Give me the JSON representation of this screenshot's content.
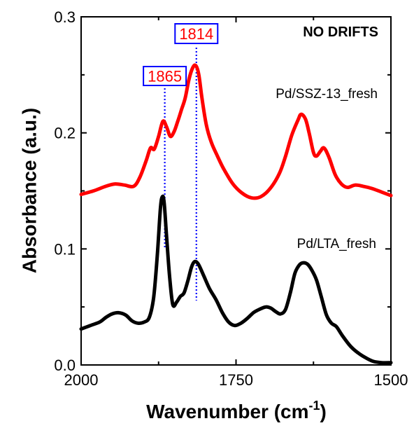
{
  "chart_data": {
    "type": "line",
    "xlabel": "Wavenumber (cm",
    "xlabel_sup": "-1",
    "xlabel_close": ")",
    "ylabel": "Absorbance (a.u.)",
    "xlim": [
      2000,
      1500
    ],
    "ylim": [
      0,
      0.3
    ],
    "x_ticks": [
      2000,
      1750,
      1500
    ],
    "y_ticks": [
      0.0,
      0.1,
      0.2,
      0.3
    ],
    "y_tick_labels": [
      "0.0",
      "0.1",
      "0.2",
      "0.3"
    ],
    "grid": false,
    "annotations": {
      "title": "NO DRIFTS",
      "peaks": [
        {
          "label": "1865",
          "x": 1865,
          "color": "#ff0000",
          "box_color": "#0000ff"
        },
        {
          "label": "1814",
          "x": 1814,
          "color": "#ff0000",
          "box_color": "#0000ff"
        }
      ]
    },
    "series": [
      {
        "name": "Pd/SSZ-13_fresh",
        "color": "#ff0000",
        "points": [
          [
            2000,
            0.147
          ],
          [
            1980,
            0.15
          ],
          [
            1960,
            0.154
          ],
          [
            1945,
            0.156
          ],
          [
            1930,
            0.155
          ],
          [
            1915,
            0.154
          ],
          [
            1905,
            0.162
          ],
          [
            1895,
            0.176
          ],
          [
            1888,
            0.187
          ],
          [
            1882,
            0.186
          ],
          [
            1875,
            0.197
          ],
          [
            1868,
            0.21
          ],
          [
            1862,
            0.205
          ],
          [
            1856,
            0.197
          ],
          [
            1850,
            0.201
          ],
          [
            1844,
            0.21
          ],
          [
            1838,
            0.22
          ],
          [
            1832,
            0.23
          ],
          [
            1826,
            0.246
          ],
          [
            1820,
            0.256
          ],
          [
            1815,
            0.258
          ],
          [
            1810,
            0.25
          ],
          [
            1805,
            0.23
          ],
          [
            1798,
            0.207
          ],
          [
            1790,
            0.192
          ],
          [
            1780,
            0.18
          ],
          [
            1770,
            0.169
          ],
          [
            1755,
            0.156
          ],
          [
            1740,
            0.148
          ],
          [
            1725,
            0.144
          ],
          [
            1710,
            0.145
          ],
          [
            1695,
            0.152
          ],
          [
            1680,
            0.165
          ],
          [
            1670,
            0.18
          ],
          [
            1660,
            0.198
          ],
          [
            1650,
            0.211
          ],
          [
            1645,
            0.216
          ],
          [
            1638,
            0.212
          ],
          [
            1632,
            0.2
          ],
          [
            1625,
            0.183
          ],
          [
            1620,
            0.18
          ],
          [
            1614,
            0.184
          ],
          [
            1608,
            0.187
          ],
          [
            1600,
            0.179
          ],
          [
            1590,
            0.164
          ],
          [
            1580,
            0.156
          ],
          [
            1570,
            0.153
          ],
          [
            1558,
            0.155
          ],
          [
            1545,
            0.154
          ],
          [
            1530,
            0.152
          ],
          [
            1515,
            0.149
          ],
          [
            1500,
            0.146
          ]
        ]
      },
      {
        "name": "Pd/LTA_fresh",
        "color": "#000000",
        "points": [
          [
            2000,
            0.031
          ],
          [
            1985,
            0.034
          ],
          [
            1970,
            0.037
          ],
          [
            1960,
            0.041
          ],
          [
            1950,
            0.044
          ],
          [
            1940,
            0.045
          ],
          [
            1928,
            0.043
          ],
          [
            1918,
            0.038
          ],
          [
            1908,
            0.036
          ],
          [
            1898,
            0.037
          ],
          [
            1890,
            0.041
          ],
          [
            1883,
            0.058
          ],
          [
            1877,
            0.095
          ],
          [
            1872,
            0.135
          ],
          [
            1869,
            0.145
          ],
          [
            1866,
            0.14
          ],
          [
            1862,
            0.11
          ],
          [
            1857,
            0.075
          ],
          [
            1852,
            0.052
          ],
          [
            1846,
            0.054
          ],
          [
            1840,
            0.059
          ],
          [
            1834,
            0.062
          ],
          [
            1828,
            0.072
          ],
          [
            1822,
            0.084
          ],
          [
            1817,
            0.089
          ],
          [
            1811,
            0.087
          ],
          [
            1803,
            0.078
          ],
          [
            1793,
            0.066
          ],
          [
            1782,
            0.056
          ],
          [
            1772,
            0.045
          ],
          [
            1762,
            0.037
          ],
          [
            1752,
            0.034
          ],
          [
            1742,
            0.036
          ],
          [
            1732,
            0.04
          ],
          [
            1722,
            0.045
          ],
          [
            1712,
            0.048
          ],
          [
            1702,
            0.05
          ],
          [
            1694,
            0.049
          ],
          [
            1686,
            0.046
          ],
          [
            1678,
            0.044
          ],
          [
            1670,
            0.048
          ],
          [
            1662,
            0.063
          ],
          [
            1655,
            0.079
          ],
          [
            1648,
            0.086
          ],
          [
            1642,
            0.088
          ],
          [
            1635,
            0.087
          ],
          [
            1628,
            0.082
          ],
          [
            1620,
            0.073
          ],
          [
            1612,
            0.058
          ],
          [
            1604,
            0.043
          ],
          [
            1596,
            0.036
          ],
          [
            1588,
            0.033
          ],
          [
            1578,
            0.025
          ],
          [
            1565,
            0.016
          ],
          [
            1552,
            0.01
          ],
          [
            1540,
            0.006
          ],
          [
            1528,
            0.003
          ],
          [
            1515,
            0.002
          ],
          [
            1500,
            0.002
          ]
        ]
      }
    ]
  }
}
